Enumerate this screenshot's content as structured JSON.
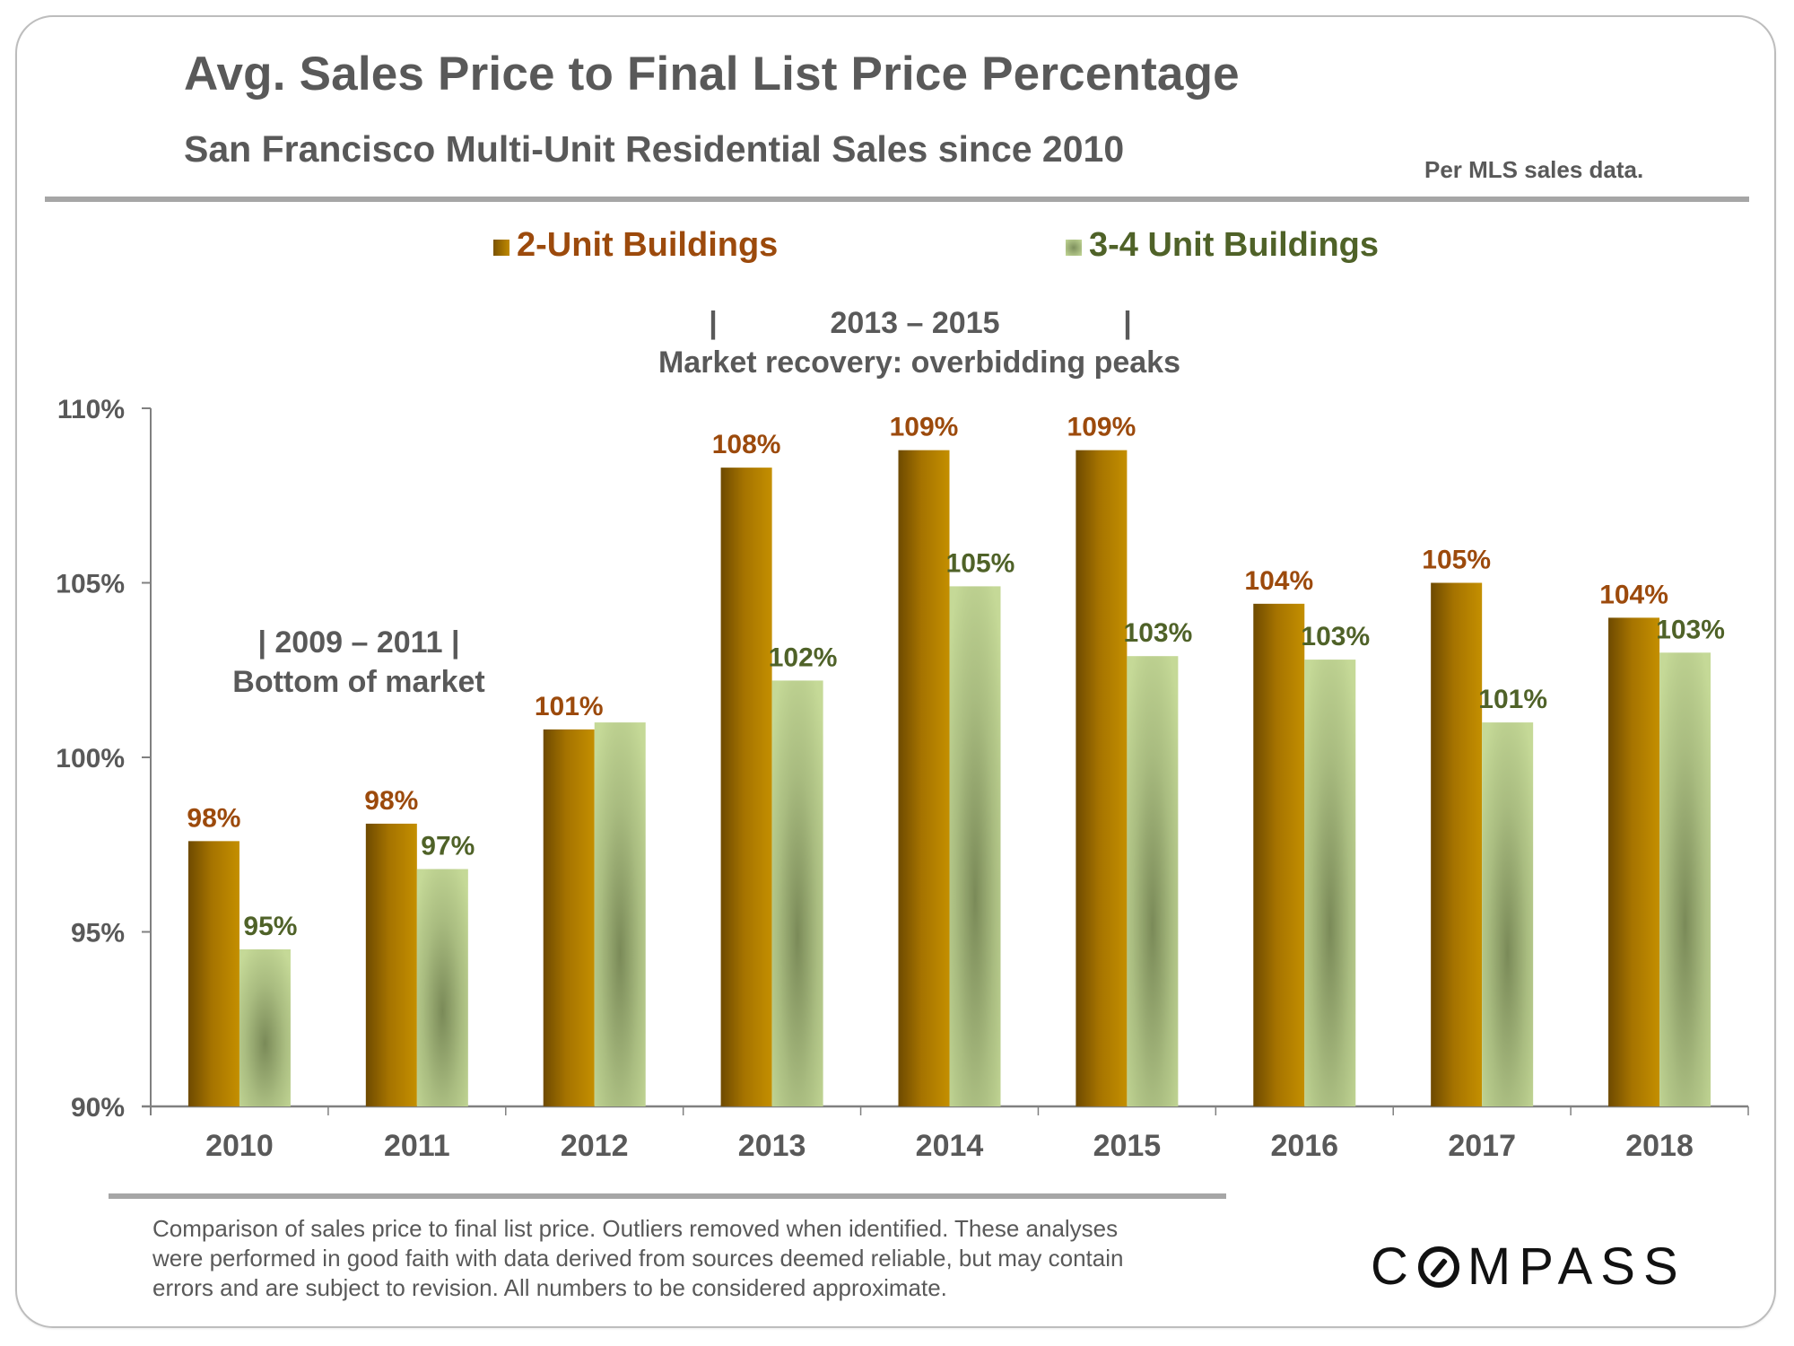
{
  "header": {
    "title": "Avg. Sales Price to Final List Price Percentage",
    "subtitle": "San Francisco Multi-Unit Residential Sales since 2010",
    "source_note": "Per MLS sales data."
  },
  "annotations": {
    "recovery_range": "2013 – 2015",
    "recovery_label": "Market recovery: overbidding peaks",
    "bottom_range": "| 2009 – 2011 |",
    "bottom_label": "Bottom of market",
    "bar_glyph": "|"
  },
  "footer": {
    "lines": [
      "Comparison of sales price to final list price. Outliers removed when identified. These analyses",
      "were performed in good faith with data derived from sources deemed reliable, but may contain",
      "errors and are subject to revision. All numbers to be considered  approximate."
    ]
  },
  "logo": {
    "text_before": "C",
    "text_after": "MPASS",
    "icon": "compass-o-icon"
  },
  "colors": {
    "series1_label": "#9C4A0C",
    "series2_label": "#4F6228",
    "text_gray": "#595959"
  },
  "chart_data": {
    "type": "bar",
    "title": "Avg. Sales Price to Final List Price Percentage",
    "subtitle": "San Francisco Multi-Unit Residential Sales since 2010",
    "xlabel": "",
    "ylabel": "",
    "categories": [
      "2010",
      "2011",
      "2012",
      "2013",
      "2014",
      "2015",
      "2016",
      "2017",
      "2018"
    ],
    "series": [
      {
        "name": "2-Unit Buildings",
        "values": [
          97.6,
          98.1,
          100.8,
          108.3,
          108.8,
          108.8,
          104.4,
          105.0,
          104.0
        ],
        "labels": [
          "98%",
          "98%",
          "101%",
          "108%",
          "109%",
          "109%",
          "104%",
          "105%",
          "104%"
        ]
      },
      {
        "name": "3-4 Unit Buildings",
        "values": [
          94.5,
          96.8,
          101.0,
          102.2,
          104.9,
          102.9,
          102.8,
          101.0,
          103.0
        ],
        "labels": [
          "95%",
          "97%",
          "",
          "102%",
          "105%",
          "103%",
          "103%",
          "101%",
          "103%"
        ]
      }
    ],
    "ylim": [
      90,
      110
    ],
    "yticks": [
      90,
      95,
      100,
      105,
      110
    ],
    "ytick_labels": [
      "90%",
      "95%",
      "100%",
      "105%",
      "110%"
    ],
    "legend": {
      "position": "top-center",
      "entries": [
        "2-Unit Buildings",
        "3-4 Unit Buildings"
      ]
    },
    "grid": false
  }
}
